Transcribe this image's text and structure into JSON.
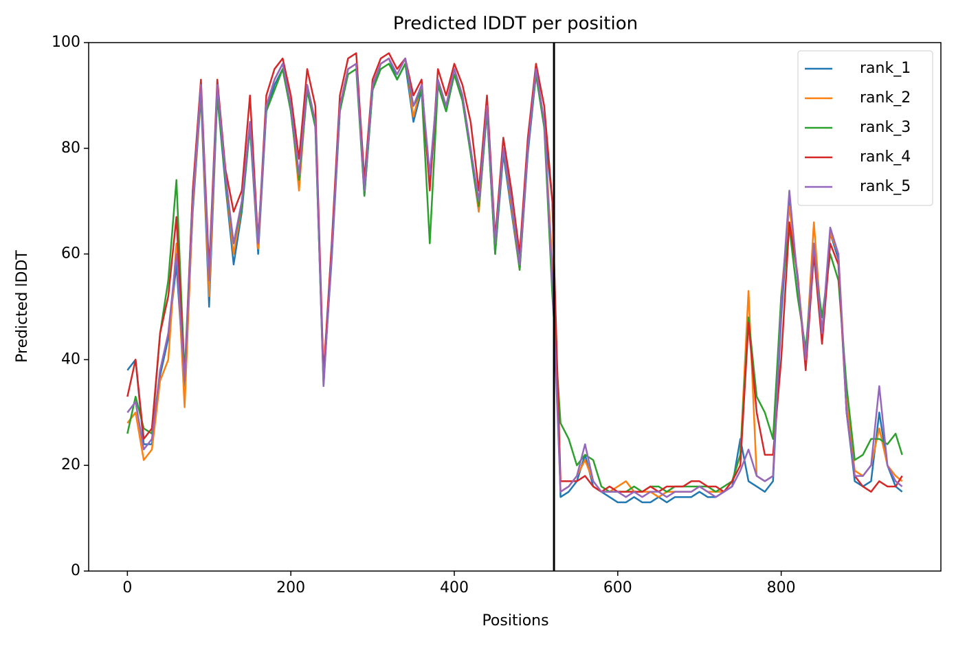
{
  "chart_data": {
    "type": "line",
    "title": "Predicted lDDT per position",
    "xlabel": "Positions",
    "ylabel": "Predicted lDDT",
    "x": [
      0,
      10,
      20,
      30,
      40,
      50,
      60,
      70,
      80,
      90,
      100,
      110,
      120,
      130,
      140,
      150,
      160,
      170,
      180,
      190,
      200,
      210,
      220,
      230,
      240,
      250,
      260,
      270,
      280,
      290,
      300,
      310,
      320,
      330,
      340,
      350,
      360,
      370,
      380,
      390,
      400,
      410,
      420,
      430,
      440,
      450,
      460,
      470,
      480,
      490,
      500,
      510,
      520,
      530,
      540,
      550,
      560,
      570,
      580,
      590,
      600,
      610,
      620,
      630,
      640,
      650,
      660,
      670,
      680,
      690,
      700,
      710,
      720,
      730,
      740,
      750,
      760,
      770,
      780,
      790,
      800,
      810,
      820,
      830,
      840,
      850,
      860,
      870,
      880,
      890,
      900,
      910,
      920,
      930,
      940,
      948
    ],
    "series": [
      {
        "name": "rank_1",
        "color": "#1f77b4",
        "values": [
          38,
          40,
          24,
          24,
          37,
          44,
          58,
          35,
          68,
          90,
          50,
          90,
          73,
          58,
          68,
          84,
          60,
          87,
          92,
          95,
          87,
          74,
          91,
          84,
          36,
          59,
          87,
          95,
          96,
          71,
          91,
          96,
          97,
          93,
          96,
          85,
          91,
          73,
          92,
          87,
          94,
          89,
          79,
          68,
          87,
          60,
          79,
          68,
          57,
          79,
          94,
          84,
          70,
          14,
          15,
          17,
          22,
          16,
          15,
          14,
          13,
          13,
          14,
          13,
          13,
          14,
          13,
          14,
          14,
          14,
          15,
          14,
          14,
          15,
          16,
          25,
          17,
          16,
          15,
          17,
          48,
          70,
          55,
          40,
          61,
          44,
          64,
          59,
          30,
          17,
          16,
          17,
          30,
          20,
          16,
          15
        ]
      },
      {
        "name": "rank_2",
        "color": "#ff7f0e",
        "values": [
          28,
          30,
          21,
          23,
          36,
          40,
          62,
          31,
          69,
          91,
          52,
          91,
          74,
          60,
          69,
          85,
          61,
          88,
          93,
          96,
          88,
          72,
          92,
          85,
          37,
          60,
          88,
          95,
          96,
          72,
          92,
          96,
          97,
          94,
          97,
          86,
          92,
          74,
          93,
          88,
          95,
          90,
          80,
          68,
          88,
          61,
          80,
          69,
          57,
          80,
          95,
          85,
          58,
          15,
          16,
          18,
          21,
          17,
          15,
          15,
          16,
          17,
          15,
          15,
          15,
          14,
          15,
          15,
          15,
          15,
          16,
          15,
          15,
          15,
          17,
          22,
          53,
          18,
          17,
          18,
          52,
          69,
          56,
          40,
          66,
          45,
          64,
          60,
          32,
          19,
          18,
          20,
          27,
          20,
          18,
          17
        ]
      },
      {
        "name": "rank_3",
        "color": "#2ca02c",
        "values": [
          26,
          33,
          27,
          26,
          45,
          55,
          74,
          37,
          72,
          91,
          56,
          90,
          74,
          62,
          69,
          84,
          63,
          87,
          91,
          95,
          87,
          74,
          91,
          84,
          35,
          61,
          87,
          94,
          95,
          71,
          91,
          95,
          96,
          93,
          96,
          88,
          91,
          62,
          92,
          87,
          94,
          89,
          79,
          69,
          87,
          60,
          80,
          70,
          57,
          80,
          94,
          84,
          52,
          28,
          25,
          20,
          22,
          21,
          16,
          15,
          15,
          15,
          16,
          15,
          16,
          16,
          15,
          16,
          16,
          16,
          16,
          16,
          15,
          16,
          17,
          22,
          48,
          33,
          30,
          25,
          52,
          65,
          52,
          42,
          60,
          48,
          60,
          55,
          35,
          21,
          22,
          25,
          25,
          24,
          26,
          22
        ]
      },
      {
        "name": "rank_4",
        "color": "#d62728",
        "values": [
          33,
          40,
          25,
          27,
          45,
          52,
          67,
          36,
          72,
          93,
          57,
          93,
          76,
          68,
          72,
          90,
          62,
          90,
          95,
          97,
          90,
          78,
          95,
          88,
          37,
          62,
          90,
          97,
          98,
          74,
          93,
          97,
          98,
          95,
          97,
          90,
          93,
          72,
          95,
          90,
          96,
          92,
          85,
          72,
          90,
          63,
          82,
          72,
          60,
          82,
          96,
          88,
          70,
          17,
          17,
          17,
          18,
          16,
          15,
          16,
          15,
          15,
          15,
          15,
          16,
          15,
          16,
          16,
          16,
          17,
          17,
          16,
          16,
          15,
          17,
          20,
          47,
          30,
          22,
          22,
          40,
          66,
          56,
          38,
          60,
          43,
          62,
          58,
          30,
          18,
          16,
          15,
          17,
          16,
          16,
          18
        ]
      },
      {
        "name": "rank_5",
        "color": "#9467bd",
        "values": [
          30,
          32,
          23,
          25,
          38,
          45,
          60,
          36,
          70,
          92,
          55,
          92,
          75,
          62,
          70,
          85,
          62,
          88,
          93,
          96,
          88,
          75,
          92,
          85,
          35,
          60,
          88,
          95,
          96,
          72,
          92,
          96,
          97,
          94,
          97,
          88,
          92,
          75,
          93,
          88,
          95,
          90,
          80,
          70,
          88,
          62,
          80,
          70,
          58,
          80,
          95,
          85,
          55,
          15,
          16,
          18,
          24,
          17,
          15,
          15,
          15,
          14,
          15,
          14,
          15,
          15,
          14,
          15,
          15,
          15,
          16,
          15,
          14,
          15,
          16,
          19,
          23,
          18,
          17,
          18,
          50,
          72,
          55,
          40,
          62,
          45,
          65,
          60,
          30,
          18,
          18,
          20,
          35,
          20,
          17,
          16
        ]
      }
    ],
    "vlines": [
      522
    ],
    "xlim": [
      -47.4,
      995.4
    ],
    "xticks": [
      0,
      200,
      400,
      600,
      800
    ],
    "ylim": [
      0,
      100
    ],
    "yticks": [
      0,
      20,
      40,
      60,
      80,
      100
    ],
    "legend": "upper right",
    "grid": false
  }
}
